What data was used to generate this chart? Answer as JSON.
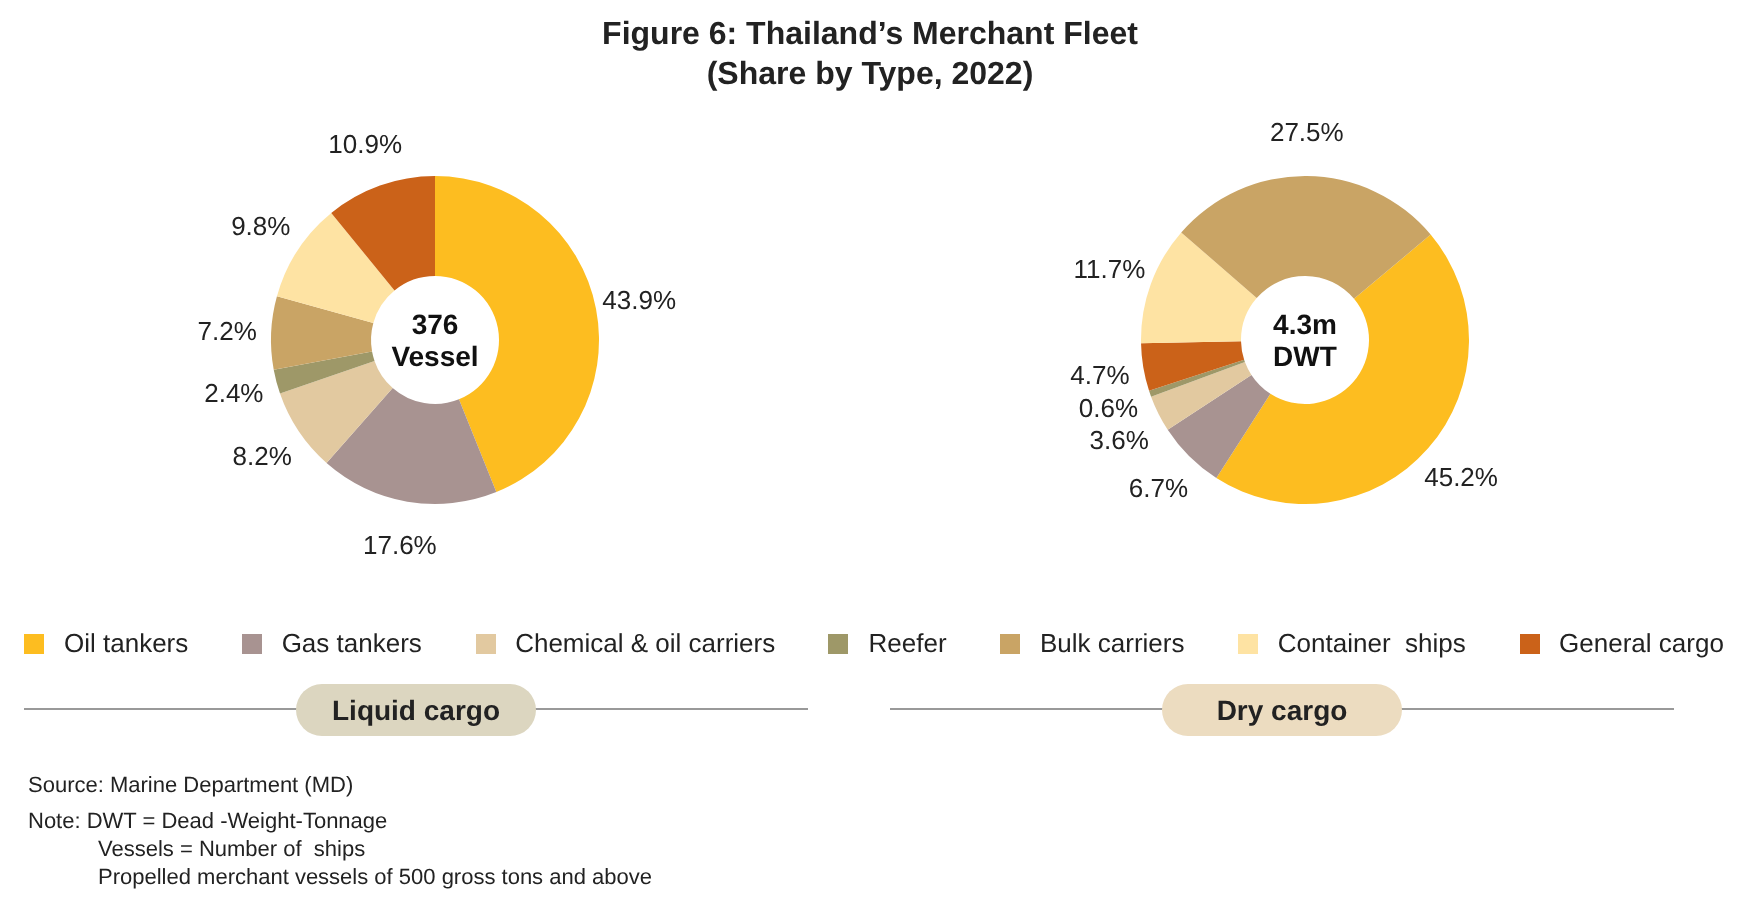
{
  "chart_data": [
    {
      "type": "donut",
      "title": "Figure 6: Thailand’s  Merchant Fleet\n(Share by Type, 2022)",
      "subtitle": "Liquid cargo",
      "legend": "bottom",
      "categories": [
        "Oil tankers",
        "Gas tankers",
        "Chemical & oil carriers",
        "Reefer",
        "Bulk carriers",
        "Container  ships",
        "General cargo"
      ],
      "values": [
        43.9,
        17.6,
        8.2,
        2.4,
        7.2,
        9.8,
        10.9
      ],
      "colors": [
        "#fdbd20",
        "#a89391",
        "#e2c9a0",
        "#9e9868",
        "#c9a465",
        "#fee3a3",
        "#cb6219"
      ],
      "value_labels": [
        "43.9%",
        "17.6%",
        "8.2%",
        "2.4%",
        "7.2%",
        "9.8%",
        "10.9%"
      ],
      "annotations": [
        "376 Vessel",
        "Source: Marine Department (MD)",
        "Note: DWT = Dead -Weight-Tonnage",
        "Vessels = Number of  ships",
        "Propelled merchant vessels of 500 gross tons and above"
      ]
    },
    {
      "type": "donut",
      "subtitle": "Dry cargo",
      "categories": [
        null,
        null,
        null,
        null,
        null,
        null,
        null
      ],
      "values": [
        45.2,
        6.7,
        3.6,
        0.6,
        4.7,
        11.7,
        27.5
      ],
      "colors": [
        "#fdbd20",
        "#a89391",
        "#e2c9a0",
        "#9e9868",
        "#cb6219",
        "#fee3a3",
        "#c9a465"
      ],
      "value_labels": [
        "45.2%",
        "6.7%",
        "3.6%",
        "0.6%",
        "4.7%",
        "11.7%",
        "27.5%"
      ],
      "annotations": [
        "4.3m DWT"
      ]
    }
  ]
}
